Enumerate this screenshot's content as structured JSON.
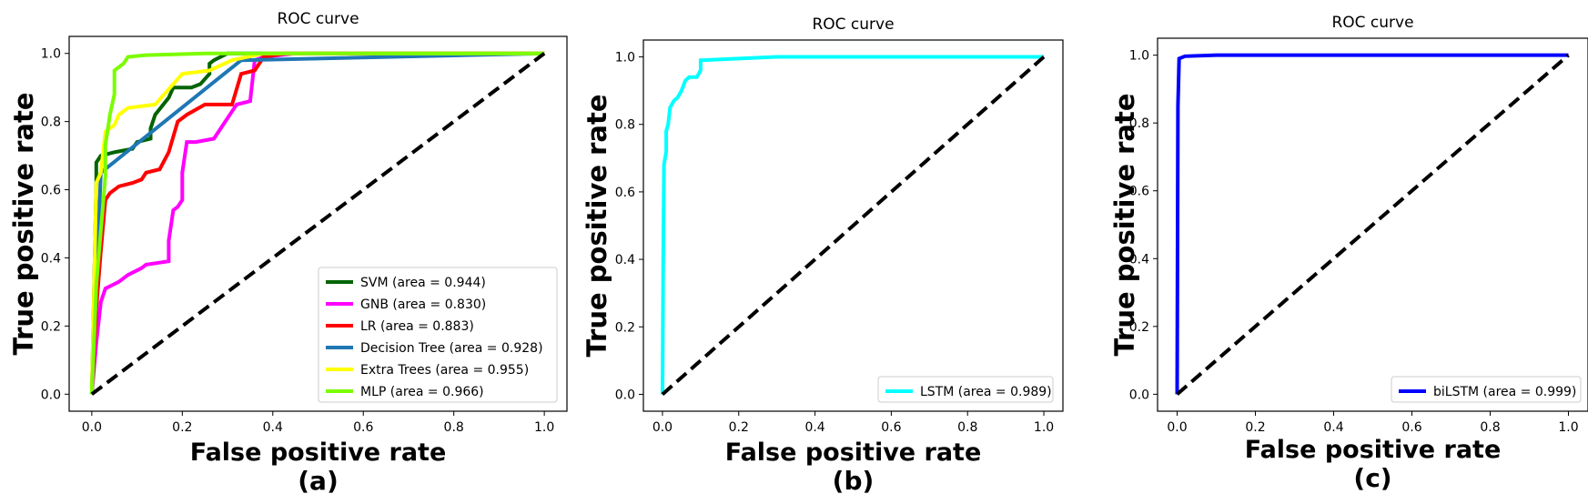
{
  "chart_data": [
    {
      "type": "line",
      "panel_label": "(a)",
      "title": "ROC curve",
      "xlabel": "False positive rate",
      "ylabel": "True positive rate",
      "xlim": [
        0,
        1
      ],
      "ylim": [
        0,
        1
      ],
      "xticks": [
        "0.0",
        "0.2",
        "0.4",
        "0.6",
        "0.8",
        "1.0"
      ],
      "yticks": [
        "0.0",
        "0.2",
        "0.4",
        "0.6",
        "0.8",
        "1.0"
      ],
      "legend_position": "lower-right",
      "series": [
        {
          "name": "SVM (area = 0.944)",
          "color": "#006400",
          "points": [
            [
              0,
              0
            ],
            [
              0.01,
              0.62
            ],
            [
              0.01,
              0.68
            ],
            [
              0.02,
              0.7
            ],
            [
              0.05,
              0.71
            ],
            [
              0.09,
              0.72
            ],
            [
              0.1,
              0.74
            ],
            [
              0.13,
              0.75
            ],
            [
              0.13,
              0.78
            ],
            [
              0.14,
              0.82
            ],
            [
              0.17,
              0.87
            ],
            [
              0.18,
              0.9
            ],
            [
              0.22,
              0.9
            ],
            [
              0.24,
              0.91
            ],
            [
              0.26,
              0.94
            ],
            [
              0.26,
              0.97
            ],
            [
              0.27,
              0.98
            ],
            [
              0.3,
              1.0
            ],
            [
              1,
              1
            ]
          ]
        },
        {
          "name": "GNB (area = 0.830)",
          "color": "#ff00ff",
          "points": [
            [
              0,
              0
            ],
            [
              0.01,
              0.15
            ],
            [
              0.02,
              0.27
            ],
            [
              0.03,
              0.31
            ],
            [
              0.06,
              0.33
            ],
            [
              0.08,
              0.35
            ],
            [
              0.11,
              0.37
            ],
            [
              0.12,
              0.38
            ],
            [
              0.17,
              0.39
            ],
            [
              0.17,
              0.45
            ],
            [
              0.18,
              0.54
            ],
            [
              0.19,
              0.55
            ],
            [
              0.2,
              0.57
            ],
            [
              0.2,
              0.65
            ],
            [
              0.21,
              0.74
            ],
            [
              0.23,
              0.74
            ],
            [
              0.27,
              0.75
            ],
            [
              0.32,
              0.85
            ],
            [
              0.35,
              0.86
            ],
            [
              0.36,
              0.98
            ],
            [
              0.38,
              0.99
            ],
            [
              0.45,
              1.0
            ],
            [
              1,
              1
            ]
          ]
        },
        {
          "name": "LR (area = 0.883)",
          "color": "#ff0000",
          "points": [
            [
              0,
              0
            ],
            [
              0.01,
              0.25
            ],
            [
              0.02,
              0.42
            ],
            [
              0.03,
              0.57
            ],
            [
              0.04,
              0.59
            ],
            [
              0.06,
              0.61
            ],
            [
              0.09,
              0.62
            ],
            [
              0.11,
              0.63
            ],
            [
              0.12,
              0.65
            ],
            [
              0.15,
              0.66
            ],
            [
              0.17,
              0.71
            ],
            [
              0.19,
              0.8
            ],
            [
              0.21,
              0.82
            ],
            [
              0.25,
              0.85
            ],
            [
              0.31,
              0.85
            ],
            [
              0.33,
              0.94
            ],
            [
              0.36,
              0.95
            ],
            [
              0.38,
              0.99
            ],
            [
              0.43,
              1.0
            ],
            [
              1,
              1
            ]
          ]
        },
        {
          "name": "Decision Tree (area = 0.928)",
          "color": "#1f77b4",
          "points": [
            [
              0,
              0
            ],
            [
              0.02,
              0.65
            ],
            [
              0.33,
              0.98
            ],
            [
              1,
              1
            ]
          ]
        },
        {
          "name": "Extra Trees (area = 0.955)",
          "color": "#ffff00",
          "points": [
            [
              0,
              0
            ],
            [
              0.01,
              0.62
            ],
            [
              0.02,
              0.65
            ],
            [
              0.03,
              0.77
            ],
            [
              0.05,
              0.79
            ],
            [
              0.06,
              0.82
            ],
            [
              0.08,
              0.84
            ],
            [
              0.14,
              0.85
            ],
            [
              0.18,
              0.91
            ],
            [
              0.2,
              0.94
            ],
            [
              0.26,
              0.95
            ],
            [
              0.31,
              0.98
            ],
            [
              0.38,
              1.0
            ],
            [
              1,
              1
            ]
          ]
        },
        {
          "name": "MLP (area = 0.966)",
          "color": "#7cfc00",
          "points": [
            [
              0,
              0
            ],
            [
              0.01,
              0.32
            ],
            [
              0.03,
              0.64
            ],
            [
              0.03,
              0.73
            ],
            [
              0.04,
              0.82
            ],
            [
              0.05,
              0.88
            ],
            [
              0.05,
              0.95
            ],
            [
              0.07,
              0.97
            ],
            [
              0.08,
              0.99
            ],
            [
              0.12,
              0.995
            ],
            [
              0.25,
              1.0
            ],
            [
              1,
              1
            ]
          ]
        }
      ],
      "diagonal": {
        "color": "#000000",
        "style": "dashed"
      }
    },
    {
      "type": "line",
      "panel_label": "(b)",
      "title": "ROC curve",
      "xlabel": "False positive rate",
      "ylabel": "True positive rate",
      "xlim": [
        0,
        1
      ],
      "ylim": [
        0,
        1
      ],
      "xticks": [
        "0.0",
        "0.2",
        "0.4",
        "0.6",
        "0.8",
        "1.0"
      ],
      "yticks": [
        "0.0",
        "0.2",
        "0.4",
        "0.6",
        "0.8",
        "1.0"
      ],
      "legend_position": "lower-right",
      "series": [
        {
          "name": "LSTM (area = 0.989)",
          "color": "#00ffff",
          "points": [
            [
              0,
              0
            ],
            [
              0.002,
              0.4
            ],
            [
              0.004,
              0.68
            ],
            [
              0.01,
              0.72
            ],
            [
              0.01,
              0.78
            ],
            [
              0.015,
              0.8
            ],
            [
              0.02,
              0.85
            ],
            [
              0.03,
              0.87
            ],
            [
              0.04,
              0.88
            ],
            [
              0.05,
              0.9
            ],
            [
              0.06,
              0.93
            ],
            [
              0.07,
              0.94
            ],
            [
              0.09,
              0.94
            ],
            [
              0.1,
              0.96
            ],
            [
              0.1,
              0.99
            ],
            [
              0.2,
              0.995
            ],
            [
              0.3,
              1.0
            ],
            [
              1,
              1
            ]
          ]
        }
      ],
      "diagonal": {
        "color": "#000000",
        "style": "dashed"
      }
    },
    {
      "type": "line",
      "panel_label": "(c)",
      "title": "ROC curve",
      "xlabel": "False positive rate",
      "ylabel": "True positive rate",
      "xlim": [
        0,
        1
      ],
      "ylim": [
        0,
        1
      ],
      "xticks": [
        "0.0",
        "0.2",
        "0.4",
        "0.6",
        "0.8",
        "1.0"
      ],
      "yticks": [
        "0.0",
        "0.2",
        "0.4",
        "0.6",
        "0.8",
        "1.0"
      ],
      "legend_position": "lower-right",
      "series": [
        {
          "name": "biLSTM (area = 0.999)",
          "color": "#0000ff",
          "points": [
            [
              0,
              0
            ],
            [
              0.002,
              0.85
            ],
            [
              0.005,
              0.99
            ],
            [
              0.02,
              0.997
            ],
            [
              0.1,
              1.0
            ],
            [
              1,
              1
            ]
          ]
        }
      ],
      "diagonal": {
        "color": "#000000",
        "style": "dashed"
      }
    }
  ]
}
